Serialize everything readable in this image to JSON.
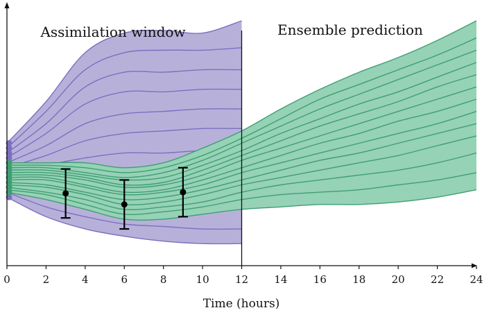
{
  "labels": {
    "assimilation": "Assimilation window",
    "prediction": "Ensemble prediction"
  },
  "chart_data": {
    "type": "line",
    "xlabel": "Time (hours)",
    "ylabel": "",
    "xlim": [
      0,
      24
    ],
    "ylim": [
      0,
      10
    ],
    "x_ticks": [
      0,
      2,
      4,
      6,
      8,
      10,
      12,
      14,
      16,
      18,
      20,
      22,
      24
    ],
    "assimilation_end": 12,
    "colors": {
      "prior_fill": "#b7b1da",
      "prior_line": "#7b6fc0",
      "posterior_fill": "#96d2b6",
      "posterior_line": "#3f9e72",
      "observation": "#000000",
      "axis": "#111111"
    },
    "prior_ensemble": {
      "x": [
        0,
        2,
        4,
        6,
        8,
        10,
        12
      ],
      "members": [
        [
          5.0,
          6.7,
          8.7,
          9.5,
          9.6,
          9.5,
          10.0
        ],
        [
          4.8,
          6.3,
          8.0,
          8.7,
          8.8,
          8.8,
          8.9
        ],
        [
          4.6,
          5.8,
          7.3,
          7.9,
          7.9,
          8.0,
          8.0
        ],
        [
          4.4,
          5.4,
          6.6,
          7.1,
          7.1,
          7.2,
          7.2
        ],
        [
          4.2,
          4.9,
          5.8,
          6.2,
          6.3,
          6.4,
          6.4
        ],
        [
          4.0,
          4.5,
          5.1,
          5.4,
          5.5,
          5.6,
          5.6
        ],
        [
          3.8,
          4.1,
          4.4,
          4.6,
          4.6,
          4.7,
          4.7
        ],
        [
          3.6,
          3.6,
          3.6,
          3.7,
          3.7,
          3.8,
          3.8
        ],
        [
          3.4,
          3.2,
          3.0,
          2.9,
          2.9,
          2.9,
          3.0
        ],
        [
          3.2,
          2.8,
          2.6,
          2.4,
          2.3,
          2.3,
          2.3
        ],
        [
          3.0,
          2.4,
          2.0,
          1.7,
          1.6,
          1.5,
          1.5
        ],
        [
          2.8,
          2.0,
          1.5,
          1.2,
          1.0,
          0.9,
          0.9
        ]
      ]
    },
    "posterior_ensemble": {
      "x": [
        0,
        2,
        4,
        6,
        8,
        10,
        12,
        14,
        16,
        18,
        20,
        22,
        24
      ],
      "members": [
        [
          4.2,
          4.2,
          4.2,
          4.0,
          4.2,
          4.8,
          5.5,
          6.4,
          7.2,
          7.9,
          8.5,
          9.2,
          10.0
        ],
        [
          4.1,
          4.1,
          4.0,
          3.8,
          4.0,
          4.5,
          5.2,
          6.0,
          6.8,
          7.4,
          8.0,
          8.6,
          9.3
        ],
        [
          4.0,
          4.0,
          3.8,
          3.6,
          3.8,
          4.3,
          5.0,
          5.7,
          6.4,
          7.0,
          7.6,
          8.2,
          8.8
        ],
        [
          3.9,
          3.9,
          3.7,
          3.5,
          3.6,
          4.1,
          4.7,
          5.4,
          6.0,
          6.6,
          7.1,
          7.7,
          8.3
        ],
        [
          3.8,
          3.8,
          3.6,
          3.3,
          3.4,
          3.9,
          4.5,
          5.1,
          5.7,
          6.2,
          6.7,
          7.3,
          7.8
        ],
        [
          3.7,
          3.7,
          3.5,
          3.2,
          3.3,
          3.7,
          4.3,
          4.8,
          5.3,
          5.8,
          6.3,
          6.8,
          7.3
        ],
        [
          3.6,
          3.6,
          3.3,
          3.0,
          3.1,
          3.5,
          4.0,
          4.5,
          5.0,
          5.4,
          5.9,
          6.3,
          6.8
        ],
        [
          3.5,
          3.5,
          3.2,
          2.9,
          3.0,
          3.3,
          3.8,
          4.2,
          4.6,
          5.0,
          5.4,
          5.8,
          6.3
        ],
        [
          3.4,
          3.3,
          3.0,
          2.7,
          2.8,
          3.1,
          3.5,
          3.9,
          4.3,
          4.6,
          5.0,
          5.4,
          5.8
        ],
        [
          3.3,
          3.2,
          2.9,
          2.5,
          2.6,
          2.9,
          3.3,
          3.6,
          3.9,
          4.2,
          4.5,
          4.9,
          5.3
        ],
        [
          3.2,
          3.0,
          2.7,
          2.3,
          2.4,
          2.6,
          3.0,
          3.3,
          3.5,
          3.7,
          3.9,
          4.2,
          4.6
        ],
        [
          3.1,
          2.9,
          2.5,
          2.1,
          2.2,
          2.4,
          2.7,
          2.9,
          3.0,
          3.1,
          3.3,
          3.5,
          3.8
        ],
        [
          3.0,
          2.7,
          2.3,
          1.9,
          1.9,
          2.1,
          2.3,
          2.4,
          2.5,
          2.5,
          2.6,
          2.8,
          3.1
        ]
      ]
    },
    "initial_prior_points": [
      5.0,
      4.8,
      4.6,
      4.4,
      4.2,
      3.8,
      3.4,
      3.2,
      3.0,
      2.8
    ],
    "initial_posterior_points": [
      4.2,
      4.0,
      3.8,
      3.6,
      3.4,
      3.2,
      3.0
    ],
    "observations": [
      {
        "x": 3,
        "y": 2.95,
        "err": 1.0
      },
      {
        "x": 6,
        "y": 2.5,
        "err": 1.0
      },
      {
        "x": 9,
        "y": 3.0,
        "err": 1.0
      }
    ]
  }
}
